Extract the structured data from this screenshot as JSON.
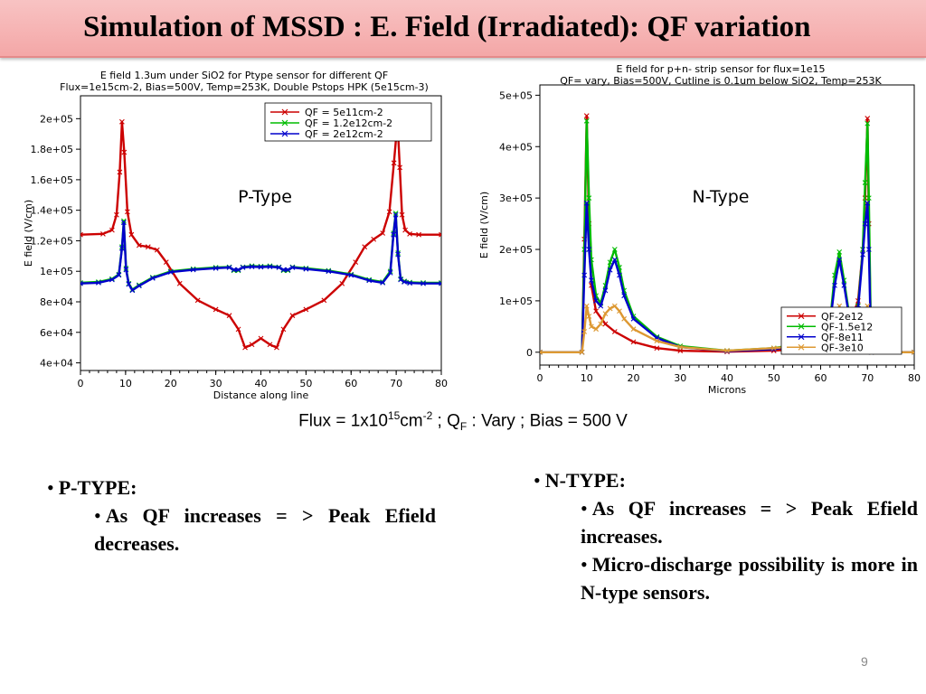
{
  "slide": {
    "title": "Simulation of MSSD : E. Field (Irradiated): QF variation",
    "caption": {
      "flux_prefix": "Flux = 1x10",
      "flux_exp": "15",
      "flux_unit": "cm",
      "flux_unit_exp": "-2",
      "qf_part": " ; Q",
      "qf_sub": "F",
      "rest": " : Vary ; Bias = 500 V"
    },
    "ptype": {
      "heading": "P-TYPE:",
      "items": [
        "As QF increases = > Peak Efield decreases."
      ]
    },
    "ntype": {
      "heading": "N-TYPE:",
      "items": [
        "As QF increases = > Peak Efield increases.",
        "Micro-discharge possibility is more in N-type sensors."
      ]
    },
    "bullet_char": "•",
    "page_number": "9"
  },
  "chart_data": [
    {
      "type": "line",
      "title": "E field 1.3um under SiO2 for Ptype sensor for different QF",
      "subtitle": "Flux=1e15cm-2, Bias=500V, Temp=253K, Double Pstops HPK (5e15cm-3)",
      "annotation": "P-Type",
      "xlabel": "Distance along line",
      "ylabel": "E field (V/cm)",
      "xlim": [
        0,
        80
      ],
      "ylim": [
        35000,
        215000
      ],
      "xticks": [
        0,
        10,
        20,
        30,
        40,
        50,
        60,
        70,
        80
      ],
      "xtick_labels": [
        "0",
        "10",
        "20",
        "30",
        "40",
        "50",
        "60",
        "70",
        "80"
      ],
      "yticks": [
        40000,
        60000,
        80000,
        100000,
        120000,
        140000,
        160000,
        180000,
        200000
      ],
      "ytick_labels": [
        "4e+04",
        "6e+04",
        "8e+04",
        "1e+05",
        "1.2e+05",
        "1.4e+05",
        "1.6e+05",
        "1.8e+05",
        "2e+05"
      ],
      "grid": false,
      "legend_position": "top-right",
      "series": [
        {
          "name": "QF = 5e11cm-2",
          "color": "#cc0000",
          "x": [
            0,
            5,
            7,
            8,
            8.7,
            9.2,
            9.7,
            10.4,
            11.3,
            13,
            15,
            17,
            19,
            22,
            26,
            30,
            33,
            35,
            36.5,
            38,
            40,
            42,
            43.5,
            45,
            47,
            50,
            54,
            58,
            61,
            63,
            65,
            67,
            68.5,
            69.5,
            70.3,
            70.8,
            71.3,
            72,
            73,
            75,
            80
          ],
          "y": [
            124000,
            124500,
            127000,
            137000,
            165000,
            198000,
            178000,
            139000,
            124000,
            117000,
            116000,
            114000,
            106000,
            92000,
            81000,
            75000,
            71000,
            62000,
            50000,
            52000,
            56000,
            52000,
            50000,
            62000,
            71000,
            75000,
            81000,
            92000,
            106000,
            116000,
            121000,
            125000,
            139000,
            171000,
            198000,
            168000,
            137000,
            127000,
            124500,
            124000,
            124000
          ]
        },
        {
          "name": "QF = 1.2e12cm-2",
          "color": "#00bb00",
          "x": [
            0,
            4,
            7,
            8.5,
            9.2,
            9.6,
            10.1,
            10.7,
            11.5,
            13,
            16,
            20,
            25,
            30,
            33,
            34,
            35,
            36,
            38,
            40,
            42,
            44,
            45,
            46,
            47,
            50,
            55,
            60,
            64,
            67,
            68.7,
            69.4,
            69.9,
            70.4,
            71,
            71.8,
            73,
            76,
            80
          ],
          "y": [
            92500,
            93000,
            95000,
            98000,
            116000,
            133000,
            102000,
            92000,
            88000,
            91000,
            96000,
            100000,
            101500,
            102500,
            102800,
            100500,
            100500,
            102800,
            103500,
            103200,
            103500,
            102800,
            100500,
            100500,
            102800,
            102000,
            100500,
            98000,
            94500,
            93000,
            100000,
            125000,
            138000,
            112000,
            95000,
            93500,
            92800,
            92500,
            92500
          ]
        },
        {
          "name": "QF = 2e12cm-2",
          "color": "#0000cc",
          "x": [
            0,
            4,
            7,
            8.5,
            9.2,
            9.6,
            10.1,
            10.7,
            11.5,
            13,
            16,
            20,
            25,
            30,
            33,
            34,
            35,
            36,
            38,
            40,
            42,
            44,
            45,
            46,
            47,
            50,
            55,
            60,
            64,
            67,
            68.7,
            69.4,
            69.9,
            70.4,
            71,
            71.8,
            73,
            76,
            80
          ],
          "y": [
            92000,
            92500,
            94500,
            97500,
            115000,
            132000,
            101000,
            91500,
            87500,
            90500,
            95500,
            99500,
            101000,
            102000,
            102500,
            101000,
            101000,
            102500,
            103000,
            102800,
            103000,
            102500,
            101000,
            101000,
            102500,
            101500,
            100000,
            97500,
            94000,
            92500,
            99000,
            124000,
            137000,
            111000,
            94500,
            93000,
            92300,
            92000,
            92000
          ]
        }
      ]
    },
    {
      "type": "line",
      "title": "E field for p+n- strip sensor for flux=1e15",
      "subtitle": "QF= vary, Bias=500V, Cutline is 0.1um below SiO2, Temp=253K",
      "annotation": "N-Type",
      "xlabel": "Microns",
      "ylabel": "E field (V/cm)",
      "xlim": [
        0,
        80
      ],
      "ylim": [
        -25000,
        520000
      ],
      "xticks": [
        0,
        10,
        20,
        30,
        40,
        50,
        60,
        70,
        80
      ],
      "xtick_labels": [
        "0",
        "10",
        "20",
        "30",
        "40",
        "50",
        "60",
        "70",
        "80"
      ],
      "yticks": [
        0,
        100000,
        200000,
        300000,
        400000,
        500000
      ],
      "ytick_labels": [
        "0",
        "1e+05",
        "2e+05",
        "3e+05",
        "4e+05",
        "5e+05"
      ],
      "grid": false,
      "legend_position": "bottom-right",
      "series": [
        {
          "name": "QF-2e12",
          "color": "#cc0000",
          "x": [
            0,
            9,
            9.5,
            10,
            10.5,
            11,
            12,
            14,
            16,
            20,
            25,
            30,
            40,
            50,
            58,
            62,
            64,
            66,
            68,
            69,
            69.5,
            70,
            70.3,
            70.8,
            80
          ],
          "y": [
            0,
            0,
            220000,
            460000,
            250000,
            130000,
            80000,
            55000,
            40000,
            20000,
            8000,
            3000,
            1000,
            3000,
            8000,
            20000,
            30000,
            50000,
            100000,
            200000,
            300000,
            455000,
            250000,
            0,
            0
          ]
        },
        {
          "name": "QF-1.5e12",
          "color": "#00bb00",
          "x": [
            0,
            9,
            9.5,
            10,
            10.5,
            11,
            12,
            13,
            14,
            15,
            16,
            17,
            18,
            20,
            25,
            30,
            40,
            50,
            55,
            58,
            60,
            62,
            63,
            64,
            65,
            66,
            67,
            68,
            69,
            69.5,
            70,
            70.3,
            70.8,
            80
          ],
          "y": [
            0,
            0,
            200000,
            450000,
            300000,
            180000,
            110000,
            95000,
            130000,
            175000,
            200000,
            165000,
            120000,
            70000,
            30000,
            12000,
            3000,
            8000,
            15000,
            22000,
            30000,
            60000,
            150000,
            195000,
            140000,
            80000,
            70000,
            90000,
            200000,
            330000,
            445000,
            300000,
            0,
            0
          ]
        },
        {
          "name": "QF-8e11",
          "color": "#0000cc",
          "x": [
            0,
            9,
            9.5,
            10,
            10.5,
            11,
            12,
            13,
            14,
            15,
            16,
            17,
            18,
            20,
            25,
            30,
            40,
            50,
            55,
            58,
            60,
            62,
            63,
            64,
            65,
            66,
            67,
            68,
            69,
            69.5,
            70,
            70.3,
            70.8,
            80
          ],
          "y": [
            0,
            0,
            150000,
            290000,
            200000,
            140000,
            100000,
            90000,
            120000,
            160000,
            180000,
            150000,
            110000,
            65000,
            28000,
            10000,
            2000,
            6000,
            13000,
            20000,
            28000,
            55000,
            130000,
            180000,
            130000,
            75000,
            65000,
            85000,
            190000,
            250000,
            290000,
            200000,
            0,
            0
          ]
        },
        {
          "name": "QF-3e10",
          "color": "#dd9933",
          "x": [
            0,
            9,
            9.5,
            10,
            10.5,
            11,
            12,
            13,
            14,
            15,
            16,
            17,
            18,
            20,
            25,
            30,
            40,
            50,
            55,
            60,
            62,
            63,
            64,
            65,
            66,
            67,
            68,
            69,
            70,
            70.5,
            71,
            80
          ],
          "y": [
            0,
            0,
            40000,
            90000,
            70000,
            50000,
            45000,
            55000,
            75000,
            85000,
            90000,
            80000,
            65000,
            45000,
            22000,
            10000,
            3000,
            8000,
            12000,
            18000,
            30000,
            60000,
            90000,
            60000,
            30000,
            30000,
            45000,
            75000,
            90000,
            50000,
            0,
            0
          ]
        }
      ]
    }
  ]
}
